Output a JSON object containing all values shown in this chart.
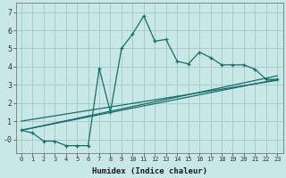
{
  "xlabel": "Humidex (Indice chaleur)",
  "bg_color": "#c8e8e8",
  "grid_color": "#a8cccc",
  "line_color": "#1a6b6b",
  "x_main": [
    0,
    1,
    2,
    3,
    4,
    5,
    6,
    7,
    8,
    9,
    10,
    11,
    12,
    13,
    14,
    15,
    16,
    17,
    18,
    19,
    20,
    21,
    22,
    23
  ],
  "y_main": [
    0.5,
    0.35,
    -0.1,
    -0.1,
    -0.35,
    -0.35,
    -0.35,
    3.9,
    1.5,
    5.0,
    5.8,
    6.8,
    5.4,
    5.5,
    4.3,
    4.15,
    4.8,
    4.5,
    4.1,
    4.1,
    4.1,
    3.85,
    3.3,
    3.3
  ],
  "trend1_x": [
    0,
    23
  ],
  "trend1_y": [
    0.5,
    3.3
  ],
  "trend2_x": [
    0,
    23
  ],
  "trend2_y": [
    0.5,
    3.5
  ],
  "trend3_x": [
    0,
    23
  ],
  "trend3_y": [
    1.0,
    3.25
  ],
  "xlim": [
    -0.5,
    23.5
  ],
  "ylim": [
    -0.75,
    7.5
  ],
  "yticks": [
    0,
    1,
    2,
    3,
    4,
    5,
    6,
    7
  ],
  "ytick_labels": [
    "-0",
    "1",
    "2",
    "3",
    "4",
    "5",
    "6",
    "7"
  ],
  "xticks": [
    0,
    1,
    2,
    3,
    4,
    5,
    6,
    7,
    8,
    9,
    10,
    11,
    12,
    13,
    14,
    15,
    16,
    17,
    18,
    19,
    20,
    21,
    22,
    23
  ],
  "xtick_labels": [
    "0",
    "1",
    "2",
    "3",
    "4",
    "5",
    "6",
    "7",
    "8",
    "9",
    "10",
    "11",
    "12",
    "13",
    "14",
    "15",
    "16",
    "17",
    "18",
    "19",
    "20",
    "21",
    "22",
    "23"
  ]
}
